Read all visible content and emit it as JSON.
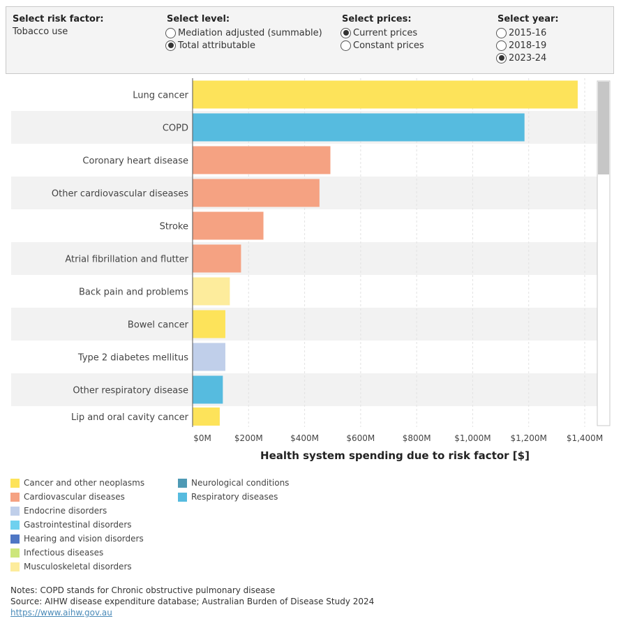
{
  "filters": {
    "risk_factor": {
      "title": "Select risk factor:",
      "value": "Tobacco use"
    },
    "level": {
      "title": "Select level:",
      "options": [
        {
          "label": "Mediation adjusted (summable)",
          "selected": false
        },
        {
          "label": "Total attributable",
          "selected": true
        }
      ]
    },
    "prices": {
      "title": "Select prices:",
      "options": [
        {
          "label": "Current prices",
          "selected": true
        },
        {
          "label": "Constant prices",
          "selected": false
        }
      ]
    },
    "year": {
      "title": "Select year:",
      "options": [
        {
          "label": "2015-16",
          "selected": false
        },
        {
          "label": "2018-19",
          "selected": false
        },
        {
          "label": "2023-24",
          "selected": true
        }
      ]
    }
  },
  "chart_data": {
    "type": "bar",
    "orientation": "horizontal",
    "categories": [
      "Lung cancer",
      "COPD",
      "Coronary heart disease",
      "Other cardiovascular diseases",
      "Stroke",
      "Atrial fibrillation and flutter",
      "Back pain and problems",
      "Bowel cancer",
      "Type 2 diabetes mellitus",
      "Other respiratory disease",
      "Lip and oral cavity cancer"
    ],
    "values": [
      1375,
      1185,
      492,
      453,
      253,
      173,
      133,
      117,
      117,
      108,
      97
    ],
    "groups": [
      "Cancer and other neoplasms",
      "Respiratory diseases",
      "Cardiovascular diseases",
      "Cardiovascular diseases",
      "Cardiovascular diseases",
      "Cardiovascular diseases",
      "Musculoskeletal disorders",
      "Cancer and other neoplasms",
      "Endocrine disorders",
      "Respiratory diseases",
      "Cancer and other neoplasms"
    ],
    "xlabel": "Health system spending due to risk factor [$]",
    "xticks": [
      "$0M",
      "$200M",
      "$400M",
      "$600M",
      "$800M",
      "$1,000M",
      "$1,200M",
      "$1,400M"
    ],
    "xlim": [
      0,
      1400
    ],
    "grid": "vertical dashed",
    "legend": [
      {
        "name": "Cancer and other neoplasms",
        "color": "#fde35a"
      },
      {
        "name": "Cardiovascular diseases",
        "color": "#f5a282"
      },
      {
        "name": "Endocrine disorders",
        "color": "#c0cfea"
      },
      {
        "name": "Gastrointestinal disorders",
        "color": "#6fd1ef"
      },
      {
        "name": "Hearing and vision disorders",
        "color": "#4f77c4"
      },
      {
        "name": "Infectious diseases",
        "color": "#cde67c"
      },
      {
        "name": "Musculoskeletal disorders",
        "color": "#fdec9c"
      },
      {
        "name": "Neurological conditions",
        "color": "#4e9ab5"
      },
      {
        "name": "Respiratory diseases",
        "color": "#56bbdf"
      }
    ]
  },
  "notes": {
    "note": "Notes: COPD stands for Chronic obstructive pulmonary disease",
    "source": "Source:  AIHW disease expenditure database; Australian Burden of Disease Study 2024",
    "link": "https://www.aihw.gov.au"
  }
}
